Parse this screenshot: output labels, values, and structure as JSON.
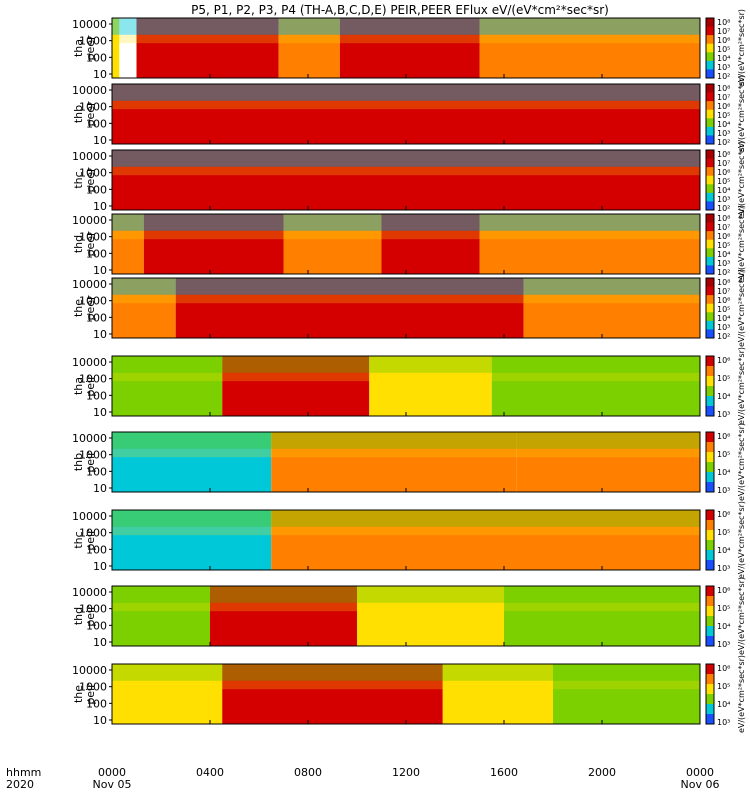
{
  "title": "P5, P1, P2, P3, P4 (TH-A,B,C,D,E) PEIR,PEER EFlux eV/(eV*cm²*sec*sr)",
  "colors": {
    "red": "#d40000",
    "darkred": "#a80000",
    "orange": "#ff8000",
    "yellow": "#ffe000",
    "green": "#7dd000",
    "cyan": "#00c8d8",
    "blue": "#1850ff",
    "black": "#000000",
    "white": "#ffffff"
  },
  "colorbar_labels": {
    "electron": "eV/(eV*cm²*sec*sr)",
    "ion": "eV/(eV*cm²*sec*sr)"
  },
  "chart_data": {
    "type": "heatmap",
    "x_ticks": [
      "0000",
      "0400",
      "0800",
      "1200",
      "1600",
      "2000",
      "0000"
    ],
    "x_date_ticks": [
      "Nov 05",
      "",
      "",
      "",
      "",
      "",
      "Nov 06"
    ],
    "x_axis_left_label": [
      "hhmm",
      "2020"
    ],
    "x_range_hours": [
      0,
      24
    ],
    "y_scale": "log",
    "y_ticks": [
      "10",
      "100",
      "1000",
      "10000"
    ],
    "colorbar_ticks_electron": [
      "10²",
      "10³",
      "10⁴",
      "10⁵",
      "10⁶",
      "10⁷",
      "10⁸"
    ],
    "colorbar_ticks_ion": [
      "10³",
      "10⁴",
      "10⁵",
      "10⁶"
    ],
    "panels": [
      {
        "probe": "tha",
        "species": "peer",
        "label": "tha\npeer",
        "segments": [
          {
            "t0": 0,
            "t1": 0.3,
            "c": "yellow"
          },
          {
            "t0": 0.3,
            "t1": 1.0,
            "c": "white"
          },
          {
            "t0": 1.0,
            "t1": 6.8,
            "c": "red"
          },
          {
            "t0": 6.8,
            "t1": 9.3,
            "c": "orange"
          },
          {
            "t0": 9.3,
            "t1": 15.0,
            "c": "red"
          },
          {
            "t0": 15.0,
            "t1": 24,
            "c": "orange"
          }
        ]
      },
      {
        "probe": "thb",
        "species": "peer",
        "label": "thb\npeer",
        "segments": [
          {
            "t0": 0,
            "t1": 24,
            "c": "red"
          }
        ]
      },
      {
        "probe": "thc",
        "species": "peer",
        "label": "thc\npeer",
        "segments": [
          {
            "t0": 0,
            "t1": 24,
            "c": "red"
          }
        ]
      },
      {
        "probe": "thd",
        "species": "peer",
        "label": "thd\npeer",
        "segments": [
          {
            "t0": 0,
            "t1": 1.3,
            "c": "orange"
          },
          {
            "t0": 1.3,
            "t1": 7.0,
            "c": "red"
          },
          {
            "t0": 7.0,
            "t1": 11.0,
            "c": "orange"
          },
          {
            "t0": 11.0,
            "t1": 15.0,
            "c": "red"
          },
          {
            "t0": 15.0,
            "t1": 24,
            "c": "orange"
          }
        ]
      },
      {
        "probe": "the",
        "species": "peer",
        "label": "the\npeer",
        "segments": [
          {
            "t0": 0,
            "t1": 2.6,
            "c": "orange"
          },
          {
            "t0": 2.6,
            "t1": 16.8,
            "c": "red"
          },
          {
            "t0": 16.8,
            "t1": 24,
            "c": "orange"
          }
        ]
      },
      {
        "probe": "tha",
        "species": "peir",
        "label": "tha\npeir",
        "segments": [
          {
            "t0": 0,
            "t1": 4.5,
            "c": "green"
          },
          {
            "t0": 4.5,
            "t1": 10.5,
            "c": "red"
          },
          {
            "t0": 10.5,
            "t1": 15.5,
            "c": "yellow"
          },
          {
            "t0": 15.5,
            "t1": 24,
            "c": "green"
          }
        ]
      },
      {
        "probe": "thb",
        "species": "peir",
        "label": "thb\npeir",
        "segments": [
          {
            "t0": 0,
            "t1": 6.5,
            "c": "cyan"
          },
          {
            "t0": 6.5,
            "t1": 16.5,
            "c": "orange"
          },
          {
            "t0": 16.5,
            "t1": 24,
            "c": "orange"
          }
        ]
      },
      {
        "probe": "thc",
        "species": "peir",
        "label": "thc\npeir",
        "segments": [
          {
            "t0": 0,
            "t1": 6.5,
            "c": "cyan"
          },
          {
            "t0": 6.5,
            "t1": 24,
            "c": "orange"
          }
        ]
      },
      {
        "probe": "thd",
        "species": "peir",
        "label": "thd\npeir",
        "segments": [
          {
            "t0": 0,
            "t1": 4.0,
            "c": "green"
          },
          {
            "t0": 4.0,
            "t1": 10.0,
            "c": "red"
          },
          {
            "t0": 10.0,
            "t1": 16.0,
            "c": "yellow"
          },
          {
            "t0": 16.0,
            "t1": 24,
            "c": "green"
          }
        ]
      },
      {
        "probe": "the",
        "species": "peir",
        "label": "the\npeir",
        "segments": [
          {
            "t0": 0,
            "t1": 4.5,
            "c": "yellow"
          },
          {
            "t0": 4.5,
            "t1": 13.5,
            "c": "red"
          },
          {
            "t0": 13.5,
            "t1": 18.0,
            "c": "yellow"
          },
          {
            "t0": 18.0,
            "t1": 24,
            "c": "green"
          }
        ]
      }
    ]
  }
}
